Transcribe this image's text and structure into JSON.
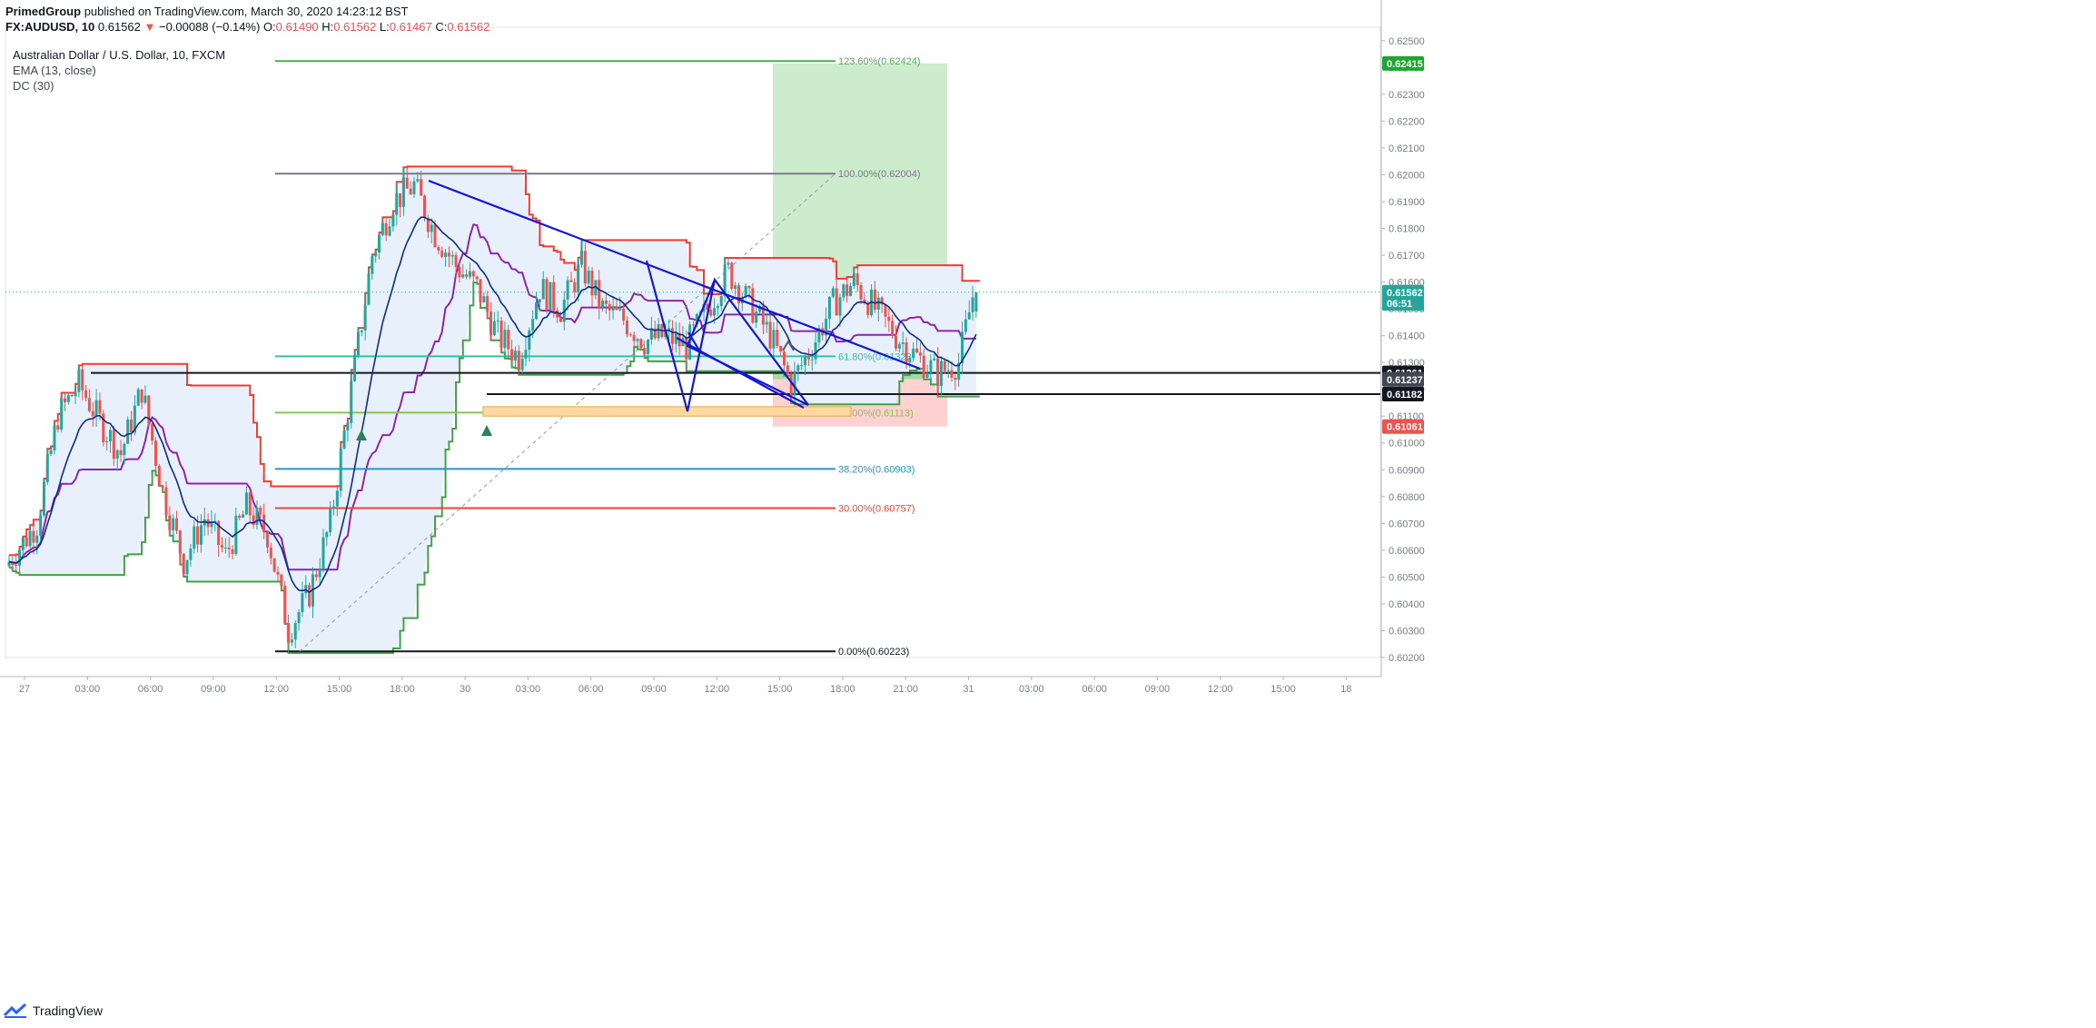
{
  "header": {
    "publisher": "PrimedGroup",
    "published_text": "published on TradingView.com, March 30, 2020 14:23:12 BST",
    "symbol": "FX:AUDUSD, 10",
    "last": "0.61562",
    "change": "−0.00088 (−0.14%)",
    "o_label": "O:",
    "o_value": "0.61490",
    "h_label": "H:",
    "h_value": "0.61562",
    "l_label": "L:",
    "l_value": "0.61467",
    "c_label": "C:",
    "c_value": "0.61562"
  },
  "legend": {
    "title": "Australian Dollar / U.S. Dollar, 10, FXCM",
    "ema": "EMA (13, close)",
    "dc": "DC (30)"
  },
  "footer": {
    "brand": "TradingView"
  },
  "colors": {
    "up": "#26a69a",
    "down": "#ef5350",
    "ema": "#0d2c8f",
    "dc_upper": "#f23b2f",
    "dc_lower": "#43a047",
    "dc_mid": "#8e24aa",
    "pattern": "#1515d6",
    "channel_fill": "#e8f1fb",
    "target_zone": "#cdeccd",
    "stop_zone": "#ffd1d1"
  },
  "chart_data": {
    "type": "candlestick",
    "ylim": [
      0.602,
      0.6255
    ],
    "y_ticks": [
      "0.62500",
      "0.62400",
      "0.62300",
      "0.62200",
      "0.62100",
      "0.62000",
      "0.61900",
      "0.61800",
      "0.61700",
      "0.61600",
      "0.61500",
      "0.61400",
      "0.61300",
      "0.61200",
      "0.61100",
      "0.61000",
      "0.60900",
      "0.60800",
      "0.60700",
      "0.60600",
      "0.60500",
      "0.60400",
      "0.60300",
      "0.60200"
    ],
    "x_ticks": [
      "27",
      "03:00",
      "06:00",
      "09:00",
      "12:00",
      "15:00",
      "18:00",
      "30",
      "03:00",
      "06:00",
      "09:00",
      "12:00",
      "15:00",
      "18:00",
      "21:00",
      "31",
      "03:00",
      "06:00",
      "09:00",
      "12:00",
      "15:00",
      "18"
    ],
    "fib_levels": [
      {
        "label": "123.60%(0.62424)",
        "price": 0.62424,
        "color": "#4caf50"
      },
      {
        "label": "100.00%(0.62004)",
        "price": 0.62004,
        "color": "#787b86"
      },
      {
        "label": "61.80%(0.61323)",
        "price": 0.61323,
        "color": "#26c6a6"
      },
      {
        "label": "50.00%(0.61113)",
        "price": 0.61113,
        "color": "#8bc34a"
      },
      {
        "label": "38.20%(0.60903)",
        "price": 0.60903,
        "color": "#2196c9"
      },
      {
        "label": "30.00%(0.60757)",
        "price": 0.60757,
        "color": "#f44336"
      },
      {
        "label": "0.00%(0.60223)",
        "price": 0.60223,
        "color": "#131722"
      }
    ],
    "price_tags": [
      {
        "label": "0.62415",
        "price": 0.62415,
        "color": "#21a531"
      },
      {
        "label": "0.61562",
        "price": 0.61562,
        "color": "#26a69a"
      },
      {
        "label": "06:51",
        "price": 0.6152,
        "color": "#26a69a"
      },
      {
        "label": "0.61261",
        "price": 0.61261,
        "color": "#131722"
      },
      {
        "label": "0.61237",
        "price": 0.61237,
        "color": "#434651"
      },
      {
        "label": "0.61182",
        "price": 0.61182,
        "color": "#131722"
      },
      {
        "label": "0.61061",
        "price": 0.61061,
        "color": "#ef5350"
      }
    ],
    "horizontal_lines": [
      {
        "price": 0.61261,
        "from": 2.3,
        "to": 59,
        "color": "#131722"
      },
      {
        "price": 0.61182,
        "from": 26.5,
        "to": 59,
        "color": "#131722"
      }
    ],
    "last_price": 0.61562,
    "position": {
      "from": 37.5,
      "to": 42.8,
      "entry": 0.61562,
      "target": 0.62415,
      "stop": 0.61061,
      "tp_start": 0.61237
    }
  }
}
